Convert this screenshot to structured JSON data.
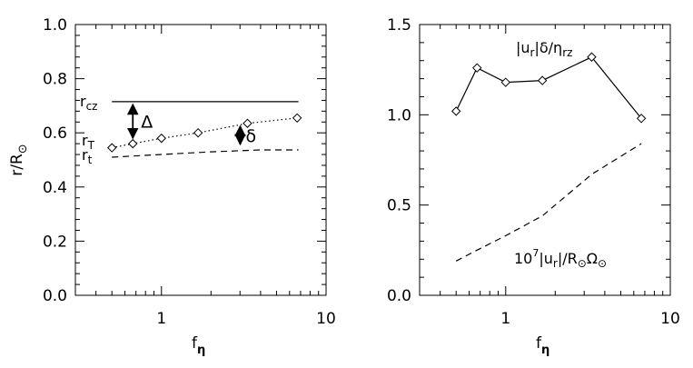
{
  "chart_data": [
    {
      "type": "line",
      "xscale": "log",
      "xlim": [
        0.3,
        10
      ],
      "ylim": [
        0.0,
        1.0
      ],
      "xticks": [
        {
          "v": 1,
          "label": "1"
        },
        {
          "v": 10,
          "label": "10"
        }
      ],
      "yticks": [
        {
          "v": 0.0,
          "label": "0.0"
        },
        {
          "v": 0.2,
          "label": "0.2"
        },
        {
          "v": 0.4,
          "label": "0.4"
        },
        {
          "v": 0.6,
          "label": "0.6"
        },
        {
          "v": 0.8,
          "label": "0.8"
        },
        {
          "v": 1.0,
          "label": "1.0"
        }
      ],
      "xlabel": "f",
      "xlabel_sub": "η",
      "ylabel": "r/R",
      "ylabel_sym": "⊙",
      "series": [
        {
          "label": "r",
          "label_sub": "cz",
          "style": "solid",
          "x": [
            0.5,
            6.8
          ],
          "y": [
            0.715,
            0.715
          ]
        },
        {
          "label": "r",
          "label_sub": "T",
          "style": "dotted",
          "marker": "diamond",
          "x": [
            0.5,
            0.67,
            1.0,
            1.67,
            3.33,
            6.67
          ],
          "y": [
            0.545,
            0.56,
            0.58,
            0.6,
            0.635,
            0.655
          ]
        },
        {
          "label": "r",
          "label_sub": "t",
          "style": "dashed",
          "x": [
            0.5,
            1.0,
            2.0,
            4.0,
            6.8
          ],
          "y": [
            0.51,
            0.52,
            0.53,
            0.537,
            0.537
          ]
        }
      ],
      "annotations": [
        {
          "text": "Δ",
          "x": 0.67,
          "y_from": 0.715,
          "y_to": 0.56
        },
        {
          "text": "δ",
          "x": 3.33,
          "y_from": 0.635,
          "y_to": 0.537
        }
      ]
    },
    {
      "type": "line",
      "xscale": "log",
      "xlim": [
        0.3,
        10
      ],
      "ylim": [
        0.0,
        1.5
      ],
      "xticks": [
        {
          "v": 1,
          "label": "1"
        },
        {
          "v": 10,
          "label": "10"
        }
      ],
      "yticks": [
        {
          "v": 0.0,
          "label": "0.0"
        },
        {
          "v": 0.5,
          "label": "0.5"
        },
        {
          "v": 1.0,
          "label": "1.0"
        },
        {
          "v": 1.5,
          "label": "1.5"
        }
      ],
      "xlabel": "f",
      "xlabel_sub": "η",
      "series": [
        {
          "name": "|u_r|δ/η_rz",
          "style": "solid",
          "marker": "diamond",
          "x": [
            0.5,
            0.67,
            1.0,
            1.67,
            3.33,
            6.67
          ],
          "y": [
            1.02,
            1.26,
            1.18,
            1.19,
            1.32,
            0.98
          ]
        },
        {
          "name": "10^7|u_r|/R⊙Ω⊙",
          "style": "dashed",
          "x": [
            0.5,
            0.67,
            1.0,
            1.67,
            3.33,
            6.67
          ],
          "y": [
            0.19,
            0.25,
            0.33,
            0.44,
            0.67,
            0.84
          ]
        }
      ],
      "labels": {
        "top": {
          "a": "|u",
          "a_sub": "r",
          "b": "|δ/η",
          "b_sub": "rz"
        },
        "bottom": {
          "a": "10",
          "a_sup": "7",
          "b": "|u",
          "b_sub": "r",
          "c": "|/R",
          "c_sub": "⊙",
          "d": "Ω",
          "d_sub": "⊙"
        }
      }
    }
  ]
}
